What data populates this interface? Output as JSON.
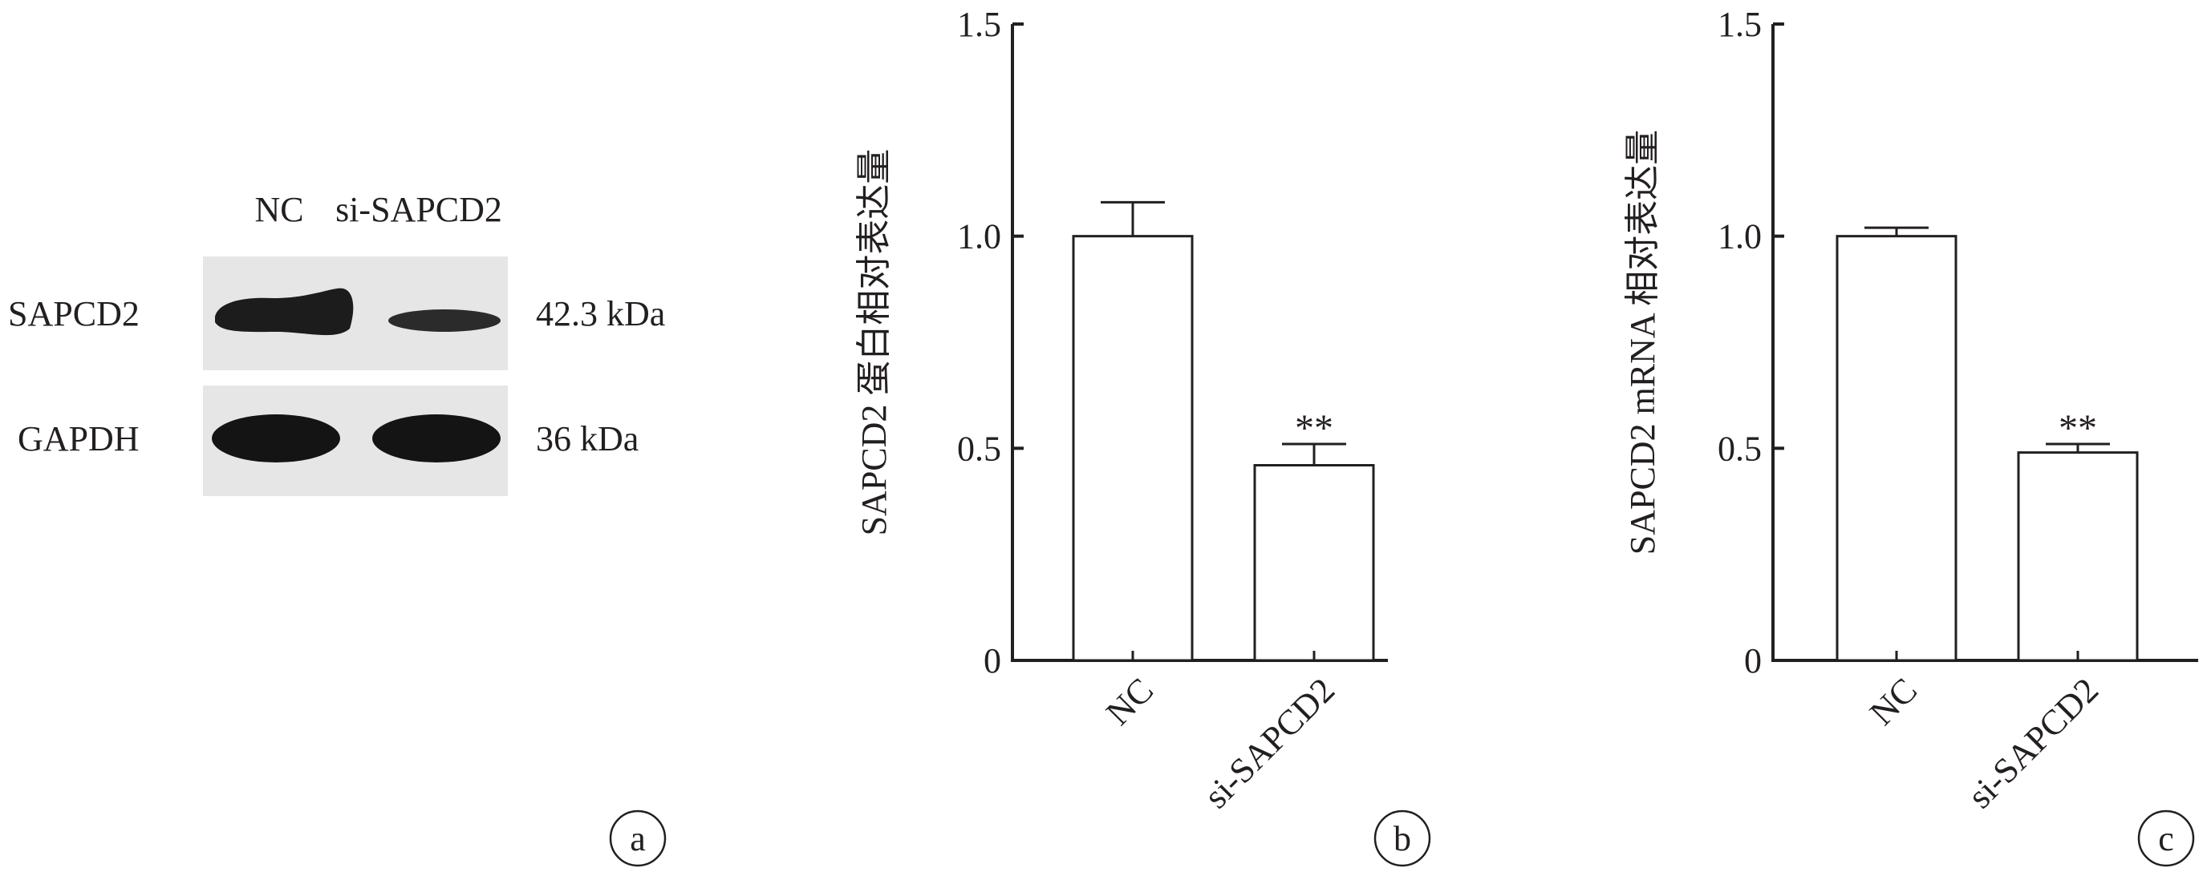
{
  "panel_a": {
    "lane_labels": [
      "NC",
      "si-SAPCD2"
    ],
    "rows": [
      {
        "protein": "SAPCD2",
        "size": "42.3 kDa",
        "band_intensity": [
          1.0,
          0.46
        ]
      },
      {
        "protein": "GAPDH",
        "size": "36 kDa",
        "band_intensity": [
          1.0,
          1.0
        ]
      }
    ],
    "label": "a"
  },
  "chart_data": [
    {
      "type": "bar",
      "panel": "b",
      "categories": [
        "NC",
        "si-SAPCD2"
      ],
      "values": [
        1.0,
        0.46
      ],
      "errors": [
        0.08,
        0.05
      ],
      "annotations": [
        "",
        "**"
      ],
      "ylabel": "SAPCD2 蛋白相对表达量",
      "ylim": [
        0,
        1.5
      ],
      "yticks": [
        0,
        0.5,
        1.0,
        1.5
      ],
      "ytick_labels": [
        "0",
        "0.5",
        "1.0",
        "1.5"
      ],
      "label": "b"
    },
    {
      "type": "bar",
      "panel": "c",
      "categories": [
        "NC",
        "si-SAPCD2"
      ],
      "values": [
        1.0,
        0.49
      ],
      "errors": [
        0.02,
        0.02
      ],
      "annotations": [
        "",
        "**"
      ],
      "ylabel": "SAPCD2 mRNA 相对表达量",
      "ylim": [
        0,
        1.5
      ],
      "yticks": [
        0,
        0.5,
        1.0,
        1.5
      ],
      "ytick_labels": [
        "0",
        "0.5",
        "1.0",
        "1.5"
      ],
      "label": "c"
    }
  ]
}
